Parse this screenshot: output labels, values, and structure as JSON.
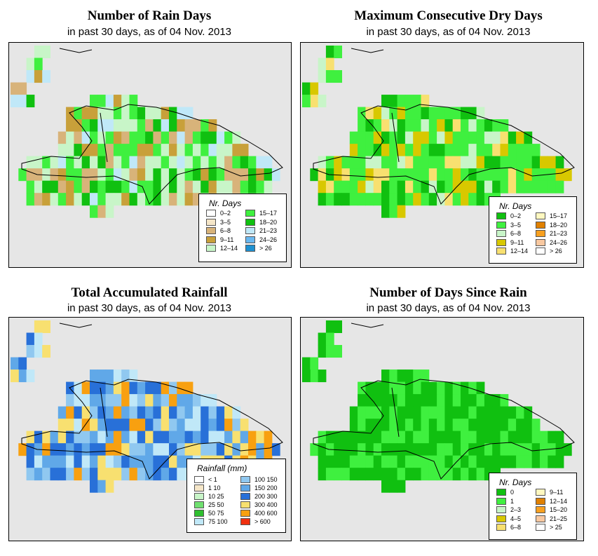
{
  "panels": [
    {
      "title": "Number of Rain Days",
      "subtitle": "in past 30 days, as of  04 Nov. 2013",
      "legend_title": "Nr. Days",
      "legend": [
        {
          "label": "0–2",
          "color": "#ffffff"
        },
        {
          "label": "3–5",
          "color": "#f5e6c8"
        },
        {
          "label": "6–8",
          "color": "#d8b37a"
        },
        {
          "label": "9–11",
          "color": "#c8a03a"
        },
        {
          "label": "12–14",
          "color": "#c8f5c8"
        },
        {
          "label": "15–17",
          "color": "#3ff03f"
        },
        {
          "label": "18–20",
          "color": "#10c010"
        },
        {
          "label": "21–23",
          "color": "#c0e8f8"
        },
        {
          "label": "24–26",
          "color": "#6ab8f0"
        },
        {
          "label": "> 26",
          "color": "#1e90d0"
        }
      ]
    },
    {
      "title": "Maximum Consecutive Dry Days",
      "subtitle": "in past 30 days, as of  04 Nov. 2013",
      "legend_title": "Nr. Days",
      "legend": [
        {
          "label": "0–2",
          "color": "#10c010"
        },
        {
          "label": "3–5",
          "color": "#3ff03f"
        },
        {
          "label": "6–8",
          "color": "#c8f5c8"
        },
        {
          "label": "9–11",
          "color": "#d8c800"
        },
        {
          "label": "12–14",
          "color": "#f8e070"
        },
        {
          "label": "15–17",
          "color": "#fff8c0"
        },
        {
          "label": "18–20",
          "color": "#e08000"
        },
        {
          "label": "21–23",
          "color": "#f8a020"
        },
        {
          "label": "24–26",
          "color": "#f8c8a0"
        },
        {
          "label": "> 26",
          "color": "#ffffff"
        }
      ]
    },
    {
      "title": "Total Accumulated Rainfall",
      "subtitle": "in past 30 days, as of  04 Nov. 2013",
      "legend_title": "Rainfall (mm)",
      "legend": [
        {
          "label": "< 1",
          "color": "#ffffff"
        },
        {
          "label": "1    10",
          "color": "#f5e6c8"
        },
        {
          "label": "10    25",
          "color": "#c8f5c8"
        },
        {
          "label": "25    50",
          "color": "#70e070"
        },
        {
          "label": "50    75",
          "color": "#30c030"
        },
        {
          "label": "75    100",
          "color": "#c0e8f8"
        },
        {
          "label": "100    150",
          "color": "#90c8f0"
        },
        {
          "label": "150    200",
          "color": "#60a8e8"
        },
        {
          "label": "200    300",
          "color": "#2870d8"
        },
        {
          "label": "300    400",
          "color": "#f8e070"
        },
        {
          "label": "400    600",
          "color": "#f8a010"
        },
        {
          "label": "> 600",
          "color": "#f03010"
        }
      ]
    },
    {
      "title": "Number of Days Since Rain",
      "subtitle": "in past 30 days, as of  04 Nov. 2013",
      "legend_title": "Nr. Days",
      "legend": [
        {
          "label": "0",
          "color": "#10c010"
        },
        {
          "label": "1",
          "color": "#3ff03f"
        },
        {
          "label": "2–3",
          "color": "#c8f5c8"
        },
        {
          "label": "4–5",
          "color": "#d8c800"
        },
        {
          "label": "6–8",
          "color": "#f8e070"
        },
        {
          "label": "9–11",
          "color": "#fff8c0"
        },
        {
          "label": "12–14",
          "color": "#e08000"
        },
        {
          "label": "15–20",
          "color": "#f8a020"
        },
        {
          "label": "21–25",
          "color": "#f8c8a0"
        },
        {
          "label": "> 25",
          "color": "#ffffff"
        }
      ]
    }
  ]
}
